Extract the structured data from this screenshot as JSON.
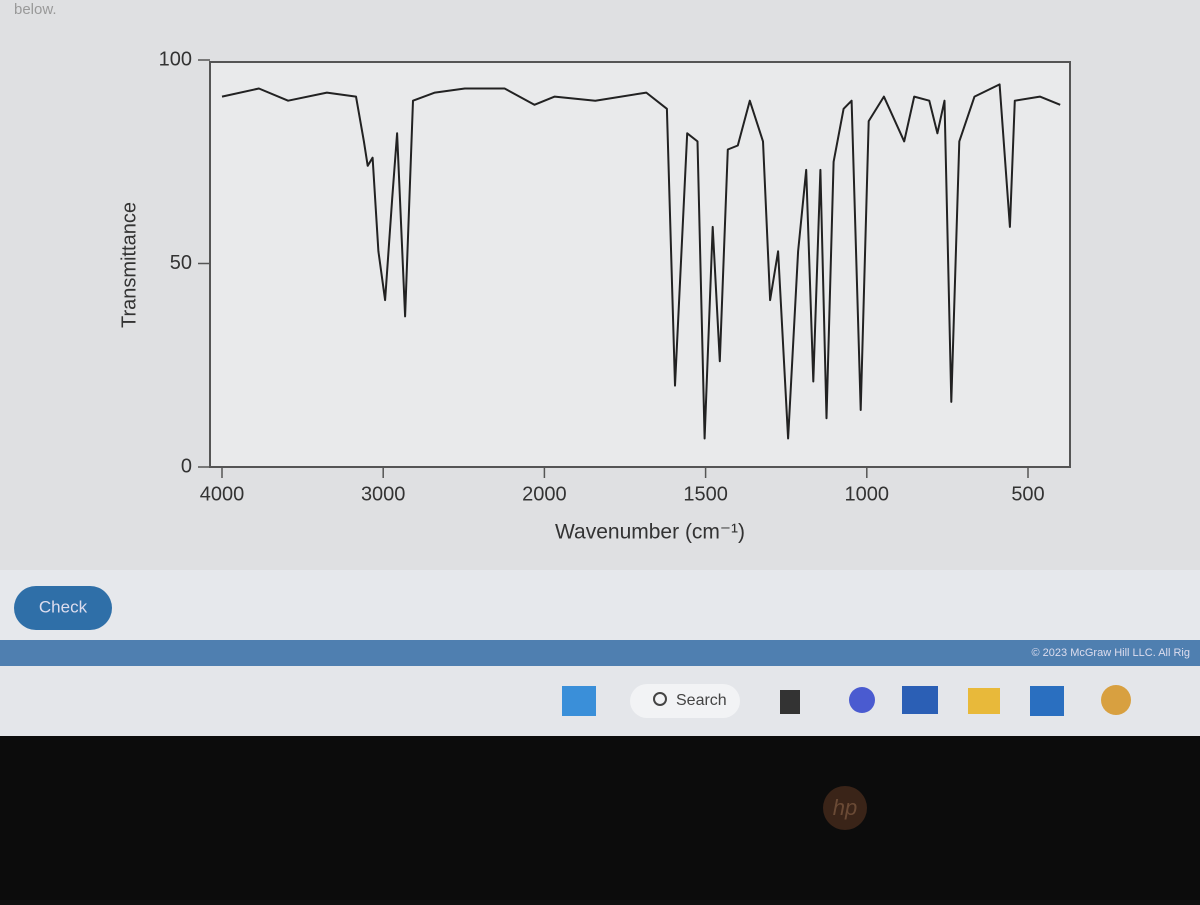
{
  "page": {
    "instruction": "below.",
    "check_button": "Check",
    "copyright": "© 2023 McGraw Hill LLC. All Rig",
    "taskbar_search": "Search",
    "brand": "hp"
  },
  "chart_data": {
    "type": "line",
    "xlabel": "Wavenumber (cm⁻¹)",
    "ylabel": "Transmittance",
    "color": "#222222",
    "x": [
      4000,
      3771,
      3590,
      3349,
      3169,
      3120,
      3096,
      3066,
      3030,
      2988,
      2944,
      2914,
      2864,
      2815,
      2679,
      2494,
      2247,
      2062,
      1968,
      1842,
      1684,
      1620,
      1595,
      1557,
      1525,
      1503,
      1478,
      1456,
      1431,
      1400,
      1363,
      1322,
      1300,
      1275,
      1244,
      1213,
      1188,
      1166,
      1144,
      1125,
      1103,
      1072,
      1047,
      1019,
      994,
      947,
      884,
      853,
      806,
      781,
      759,
      738,
      713,
      666,
      588,
      556,
      541,
      463,
      400
    ],
    "values": [
      91,
      93,
      90,
      92,
      91,
      80,
      74,
      76,
      53,
      41,
      66,
      82,
      37,
      90,
      92,
      93,
      93,
      89,
      91,
      90,
      92,
      88,
      20,
      82,
      80,
      7,
      59,
      26,
      78,
      79,
      90,
      80,
      41,
      53,
      7,
      53,
      73,
      21,
      73,
      12,
      75,
      88,
      90,
      14,
      85,
      91,
      80,
      91,
      90,
      82,
      90,
      16,
      80,
      91,
      94,
      59,
      90,
      91,
      89
    ],
    "xlim": [
      4000,
      400
    ],
    "xticks": [
      4000,
      3000,
      2000,
      1500,
      1000,
      500
    ],
    "ylim": [
      0,
      100
    ],
    "yticks": [
      0,
      50,
      100
    ]
  }
}
